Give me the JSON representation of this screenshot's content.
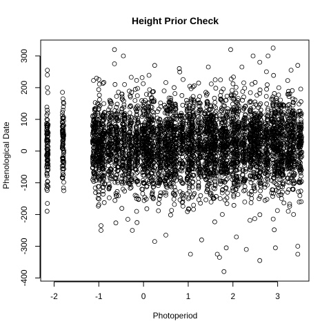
{
  "chart_data": {
    "type": "scatter",
    "title": "Height Prior Check",
    "xlabel": "Photoperiod",
    "ylabel": "Phenological Date",
    "xlim": [
      -2.3,
      3.7
    ],
    "ylim": [
      -410,
      350
    ],
    "x_ticks": [
      -2,
      -1,
      0,
      1,
      2,
      3
    ],
    "x_tick_labels": [
      "-2",
      "-1",
      "0",
      "1",
      "2",
      "3"
    ],
    "y_ticks": [
      -400,
      -300,
      -200,
      -100,
      0,
      100,
      200,
      300
    ],
    "y_tick_labels": [
      "-400",
      "-300",
      "-200",
      "-100",
      "0",
      "100",
      "200",
      "300"
    ],
    "grid": false,
    "marker": "open-circle",
    "marker_color": "#000000",
    "x_value_groups": [
      -2.15,
      -1.8,
      -1.1,
      -1.0,
      -0.9,
      -0.75,
      -0.6,
      -0.45,
      -0.3,
      -0.15,
      0.0,
      0.1,
      0.2,
      0.35,
      0.5,
      0.6,
      0.7,
      0.85,
      1.0,
      1.1,
      1.25,
      1.4,
      1.5,
      1.6,
      1.75,
      1.85,
      2.0,
      2.1,
      2.25,
      2.4,
      2.5,
      2.6,
      2.75,
      2.9,
      3.0,
      3.1,
      3.25,
      3.35,
      3.5
    ],
    "y_center": 20,
    "y_observed_range": [
      -380,
      325
    ],
    "points": [
      {
        "x": -2.15,
        "y": 255
      },
      {
        "x": -2.15,
        "y": 240
      },
      {
        "x": -2.15,
        "y": 200
      },
      {
        "x": -2.15,
        "y": -165
      },
      {
        "x": -2.15,
        "y": -110
      },
      {
        "x": -1.8,
        "y": 165
      },
      {
        "x": -1.8,
        "y": -75
      },
      {
        "x": -1.05,
        "y": 230
      },
      {
        "x": -0.95,
        "y": -235
      },
      {
        "x": -0.95,
        "y": -250
      },
      {
        "x": -0.65,
        "y": 320
      },
      {
        "x": -0.65,
        "y": 275
      },
      {
        "x": -0.45,
        "y": 300
      },
      {
        "x": -0.35,
        "y": -215
      },
      {
        "x": -0.25,
        "y": -250
      },
      {
        "x": 0.25,
        "y": -285
      },
      {
        "x": 0.25,
        "y": 270
      },
      {
        "x": 0.5,
        "y": -265
      },
      {
        "x": 0.8,
        "y": 260
      },
      {
        "x": 1.05,
        "y": -325
      },
      {
        "x": 1.3,
        "y": -280
      },
      {
        "x": 1.45,
        "y": 265
      },
      {
        "x": 1.65,
        "y": -325
      },
      {
        "x": 1.7,
        "y": -335
      },
      {
        "x": 1.8,
        "y": -380
      },
      {
        "x": 1.95,
        "y": 320
      },
      {
        "x": 1.85,
        "y": -305
      },
      {
        "x": 2.2,
        "y": 265
      },
      {
        "x": 2.3,
        "y": -310
      },
      {
        "x": 2.45,
        "y": 300
      },
      {
        "x": 2.6,
        "y": 280
      },
      {
        "x": 2.6,
        "y": -345
      },
      {
        "x": 2.75,
        "y": 250
      },
      {
        "x": 2.9,
        "y": 325
      },
      {
        "x": 2.95,
        "y": -305
      },
      {
        "x": 3.3,
        "y": 255
      },
      {
        "x": 3.45,
        "y": 270
      },
      {
        "x": 3.45,
        "y": -300
      },
      {
        "x": 3.45,
        "y": -325
      }
    ]
  }
}
